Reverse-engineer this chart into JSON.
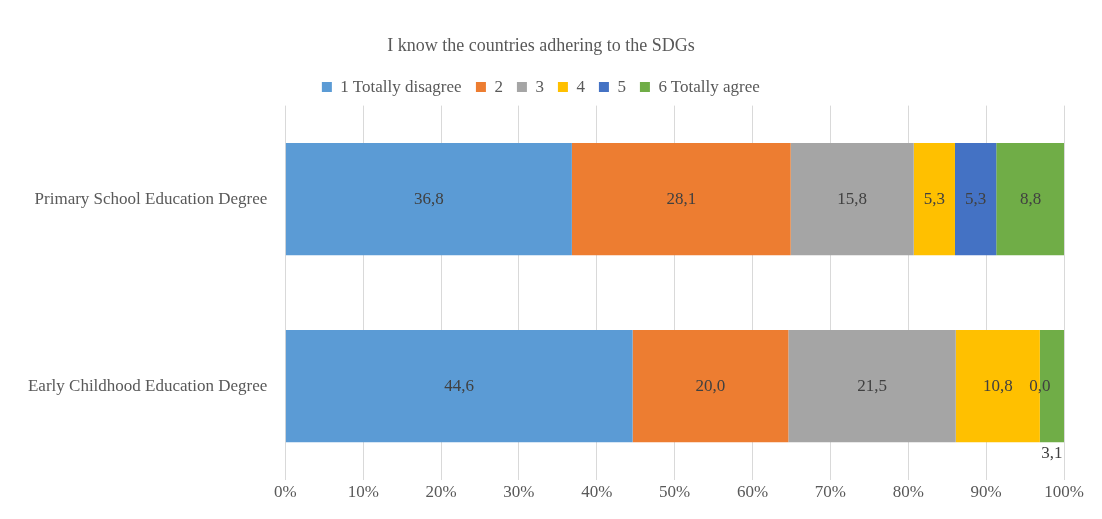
{
  "chart_data": {
    "type": "bar",
    "orientation": "horizontal",
    "stacked": true,
    "title": "I know the countries adhering to the SDGs",
    "categories": [
      "Primary School Education Degree",
      "Early Childhood Education Degree"
    ],
    "series": [
      {
        "name": "1 Totally disagree",
        "color": "#5b9bd5",
        "values": [
          36.8,
          44.6
        ],
        "value_labels": [
          "36,8",
          "44,6"
        ]
      },
      {
        "name": "2",
        "color": "#ed7d31",
        "values": [
          28.1,
          20.0
        ],
        "value_labels": [
          "28,1",
          "20,0"
        ]
      },
      {
        "name": "3",
        "color": "#a5a5a5",
        "values": [
          15.8,
          21.5
        ],
        "value_labels": [
          "15,8",
          "21,5"
        ]
      },
      {
        "name": "4",
        "color": "#ffc000",
        "values": [
          5.3,
          10.8
        ],
        "value_labels": [
          "5,3",
          "10,8"
        ]
      },
      {
        "name": "5",
        "color": "#4472c4",
        "values": [
          5.3,
          0.0
        ],
        "value_labels": [
          "5,3",
          "0,0"
        ]
      },
      {
        "name": "6 Totally agree",
        "color": "#70ad47",
        "values": [
          8.8,
          3.1
        ],
        "value_labels": [
          "8,8",
          "3,1"
        ]
      }
    ],
    "xlim": [
      0,
      100
    ],
    "xticks": [
      {
        "value": 0,
        "label": "0%"
      },
      {
        "value": 10,
        "label": "10%"
      },
      {
        "value": 20,
        "label": "20%"
      },
      {
        "value": 30,
        "label": "30%"
      },
      {
        "value": 40,
        "label": "40%"
      },
      {
        "value": 50,
        "label": "50%"
      },
      {
        "value": 60,
        "label": "60%"
      },
      {
        "value": 70,
        "label": "70%"
      },
      {
        "value": 80,
        "label": "80%"
      },
      {
        "value": 90,
        "label": "90%"
      },
      {
        "value": 100,
        "label": "100%"
      }
    ],
    "grid": "x",
    "legend": "top"
  }
}
